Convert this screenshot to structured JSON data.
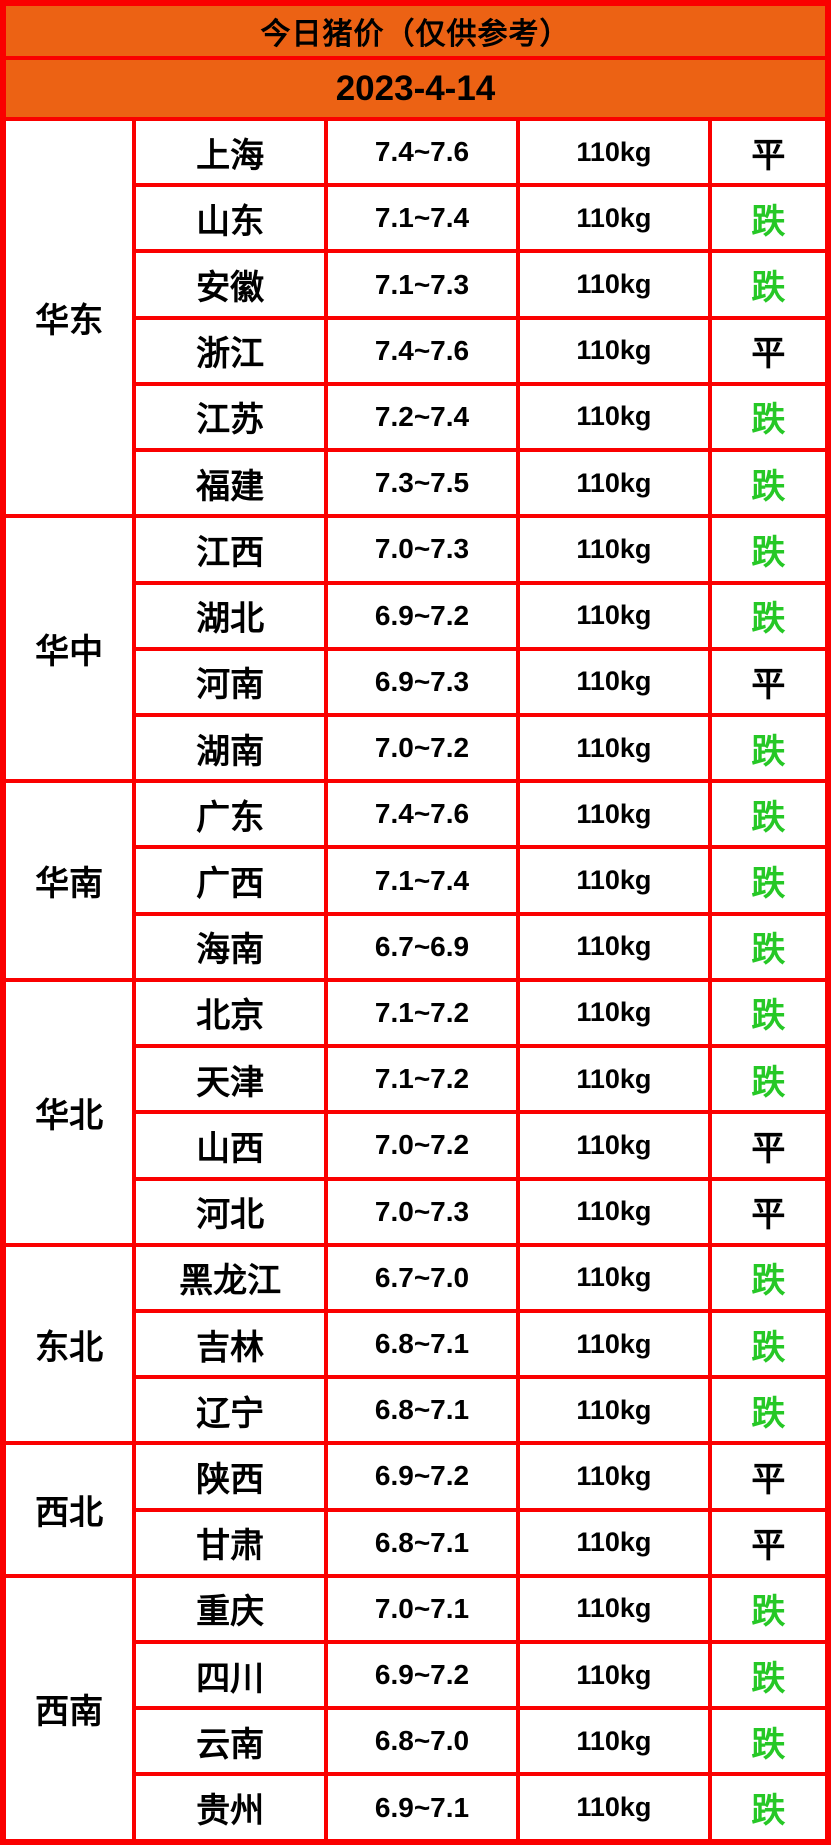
{
  "page": {
    "title": "今日猪价（仅供参考）",
    "date": "2023-4-14"
  },
  "colors": {
    "header_bg": "#EC6214",
    "border": "#FA0000",
    "text": "#000000",
    "fall_green": "#26C826",
    "cell_bg": "#FFFFFF"
  },
  "legend": {
    "flat_label": "平",
    "fall_label": "跌"
  },
  "chart_data": {
    "type": "table",
    "title": "今日猪价（仅供参考）",
    "date": "2023-4-14",
    "rows": [
      {
        "region": "华东",
        "province": "上海",
        "price": "7.4~7.6",
        "weight": "110kg",
        "status": "平",
        "trend": "flat"
      },
      {
        "region": "华东",
        "province": "山东",
        "price": "7.1~7.4",
        "weight": "110kg",
        "status": "跌",
        "trend": "fall"
      },
      {
        "region": "华东",
        "province": "安徽",
        "price": "7.1~7.3",
        "weight": "110kg",
        "status": "跌",
        "trend": "fall"
      },
      {
        "region": "华东",
        "province": "浙江",
        "price": "7.4~7.6",
        "weight": "110kg",
        "status": "平",
        "trend": "flat"
      },
      {
        "region": "华东",
        "province": "江苏",
        "price": "7.2~7.4",
        "weight": "110kg",
        "status": "跌",
        "trend": "fall"
      },
      {
        "region": "华东",
        "province": "福建",
        "price": "7.3~7.5",
        "weight": "110kg",
        "status": "跌",
        "trend": "fall"
      },
      {
        "region": "华中",
        "province": "江西",
        "price": "7.0~7.3",
        "weight": "110kg",
        "status": "跌",
        "trend": "fall"
      },
      {
        "region": "华中",
        "province": "湖北",
        "price": "6.9~7.2",
        "weight": "110kg",
        "status": "跌",
        "trend": "fall"
      },
      {
        "region": "华中",
        "province": "河南",
        "price": "6.9~7.3",
        "weight": "110kg",
        "status": "平",
        "trend": "flat"
      },
      {
        "region": "华中",
        "province": "湖南",
        "price": "7.0~7.2",
        "weight": "110kg",
        "status": "跌",
        "trend": "fall"
      },
      {
        "region": "华南",
        "province": "广东",
        "price": "7.4~7.6",
        "weight": "110kg",
        "status": "跌",
        "trend": "fall"
      },
      {
        "region": "华南",
        "province": "广西",
        "price": "7.1~7.4",
        "weight": "110kg",
        "status": "跌",
        "trend": "fall"
      },
      {
        "region": "华南",
        "province": "海南",
        "price": "6.7~6.9",
        "weight": "110kg",
        "status": "跌",
        "trend": "fall"
      },
      {
        "region": "华北",
        "province": "北京",
        "price": "7.1~7.2",
        "weight": "110kg",
        "status": "跌",
        "trend": "fall"
      },
      {
        "region": "华北",
        "province": "天津",
        "price": "7.1~7.2",
        "weight": "110kg",
        "status": "跌",
        "trend": "fall"
      },
      {
        "region": "华北",
        "province": "山西",
        "price": "7.0~7.2",
        "weight": "110kg",
        "status": "平",
        "trend": "flat"
      },
      {
        "region": "华北",
        "province": "河北",
        "price": "7.0~7.3",
        "weight": "110kg",
        "status": "平",
        "trend": "flat"
      },
      {
        "region": "东北",
        "province": "黑龙江",
        "price": "6.7~7.0",
        "weight": "110kg",
        "status": "跌",
        "trend": "fall"
      },
      {
        "region": "东北",
        "province": "吉林",
        "price": "6.8~7.1",
        "weight": "110kg",
        "status": "跌",
        "trend": "fall"
      },
      {
        "region": "东北",
        "province": "辽宁",
        "price": "6.8~7.1",
        "weight": "110kg",
        "status": "跌",
        "trend": "fall"
      },
      {
        "region": "西北",
        "province": "陕西",
        "price": "6.9~7.2",
        "weight": "110kg",
        "status": "平",
        "trend": "flat"
      },
      {
        "region": "西北",
        "province": "甘肃",
        "price": "6.8~7.1",
        "weight": "110kg",
        "status": "平",
        "trend": "flat"
      },
      {
        "region": "西南",
        "province": "重庆",
        "price": "7.0~7.1",
        "weight": "110kg",
        "status": "跌",
        "trend": "fall"
      },
      {
        "region": "西南",
        "province": "四川",
        "price": "6.9~7.2",
        "weight": "110kg",
        "status": "跌",
        "trend": "fall"
      },
      {
        "region": "西南",
        "province": "云南",
        "price": "6.8~7.0",
        "weight": "110kg",
        "status": "跌",
        "trend": "fall"
      },
      {
        "region": "西南",
        "province": "贵州",
        "price": "6.9~7.1",
        "weight": "110kg",
        "status": "跌",
        "trend": "fall"
      }
    ]
  }
}
